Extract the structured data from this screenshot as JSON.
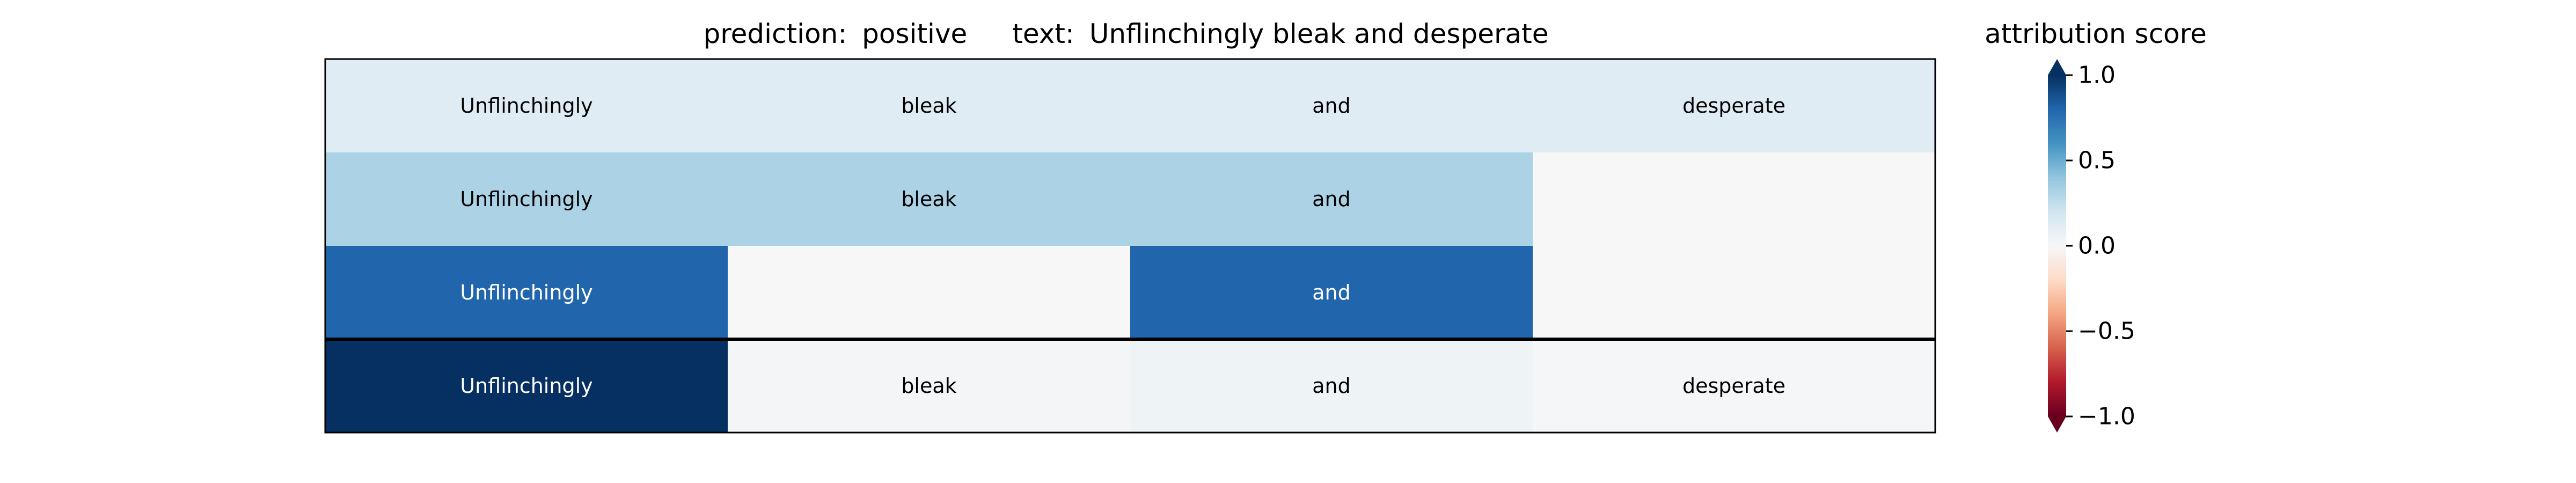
{
  "chart_data": {
    "type": "heatmap",
    "title": {
      "prediction_label": "prediction:",
      "prediction_value": "positive",
      "text_label": "text:",
      "text_value": "Unflinchingly bleak and desperate"
    },
    "rows": [
      {
        "cells": [
          {
            "token": "Unflinchingly",
            "score": 0.12
          },
          {
            "token": "bleak",
            "score": 0.12
          },
          {
            "token": "and",
            "score": 0.12
          },
          {
            "token": "desperate",
            "score": 0.12
          }
        ]
      },
      {
        "cells": [
          {
            "token": "Unflinchingly",
            "score": 0.32
          },
          {
            "token": "bleak",
            "score": 0.32
          },
          {
            "token": "and",
            "score": 0.32
          },
          {
            "token": "",
            "score": 0.0
          }
        ]
      },
      {
        "cells": [
          {
            "token": "Unflinchingly",
            "score": 0.8
          },
          {
            "token": "",
            "score": 0.0
          },
          {
            "token": "and",
            "score": 0.8
          },
          {
            "token": "",
            "score": 0.0
          }
        ]
      },
      {
        "cells": [
          {
            "token": "Unflinchingly",
            "score": 1.0
          },
          {
            "token": "bleak",
            "score": 0.02
          },
          {
            "token": "and",
            "score": 0.05
          },
          {
            "token": "desperate",
            "score": 0.01
          }
        ]
      }
    ],
    "separator_before_row": 3,
    "colorbar": {
      "label": "attribution score",
      "colormap": "RdBu",
      "vmin": -1.0,
      "vmax": 1.0,
      "ticks": [
        1.0,
        0.5,
        0.0,
        -0.5,
        -1.0
      ],
      "tick_labels": [
        "1.0",
        "0.5",
        "0.0",
        "−0.5",
        "−1.0"
      ],
      "extend": "both"
    },
    "colors": {
      "text_dark": "#000000",
      "text_light": "#ffffff",
      "frame": "#000000"
    }
  }
}
